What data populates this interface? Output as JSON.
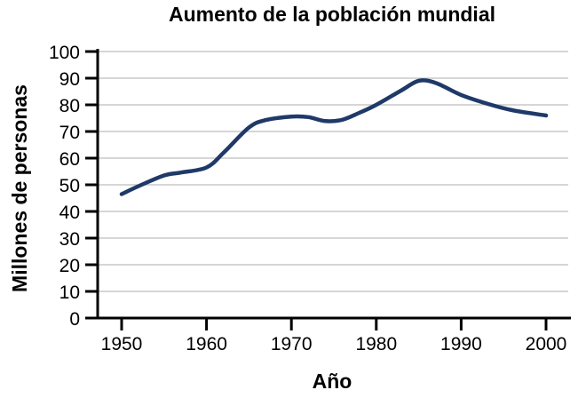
{
  "chart_data": {
    "type": "line",
    "title": "Aumento de la población mundial",
    "xlabel": "Año",
    "ylabel": "Millones de personas",
    "xlim": [
      1950,
      2000
    ],
    "ylim": [
      0,
      100
    ],
    "x_ticks": [
      1950,
      1960,
      1970,
      1980,
      1990,
      2000
    ],
    "y_ticks": [
      0,
      10,
      20,
      30,
      40,
      50,
      60,
      70,
      80,
      90,
      100
    ],
    "grid": "horizontal",
    "legend_position": "none",
    "series": [
      {
        "color": "#1f3a68",
        "points": [
          [
            1950,
            46.5
          ],
          [
            1952,
            49.5
          ],
          [
            1955,
            53.5
          ],
          [
            1957,
            54.6
          ],
          [
            1960,
            56.5
          ],
          [
            1962,
            62
          ],
          [
            1965,
            71.5
          ],
          [
            1967,
            74.3
          ],
          [
            1970,
            75.6
          ],
          [
            1972,
            75.4
          ],
          [
            1974,
            73.9
          ],
          [
            1976,
            74.4
          ],
          [
            1978,
            77
          ],
          [
            1980,
            80
          ],
          [
            1983,
            85.5
          ],
          [
            1985,
            89
          ],
          [
            1987,
            88.2
          ],
          [
            1990,
            83.7
          ],
          [
            1993,
            80.5
          ],
          [
            1996,
            78
          ],
          [
            2000,
            76
          ]
        ]
      }
    ],
    "colors": {
      "line": "#1f3a68",
      "axis": "#000000",
      "grid": "#c9c9c9",
      "background": "#ffffff",
      "text": "#000000"
    }
  }
}
